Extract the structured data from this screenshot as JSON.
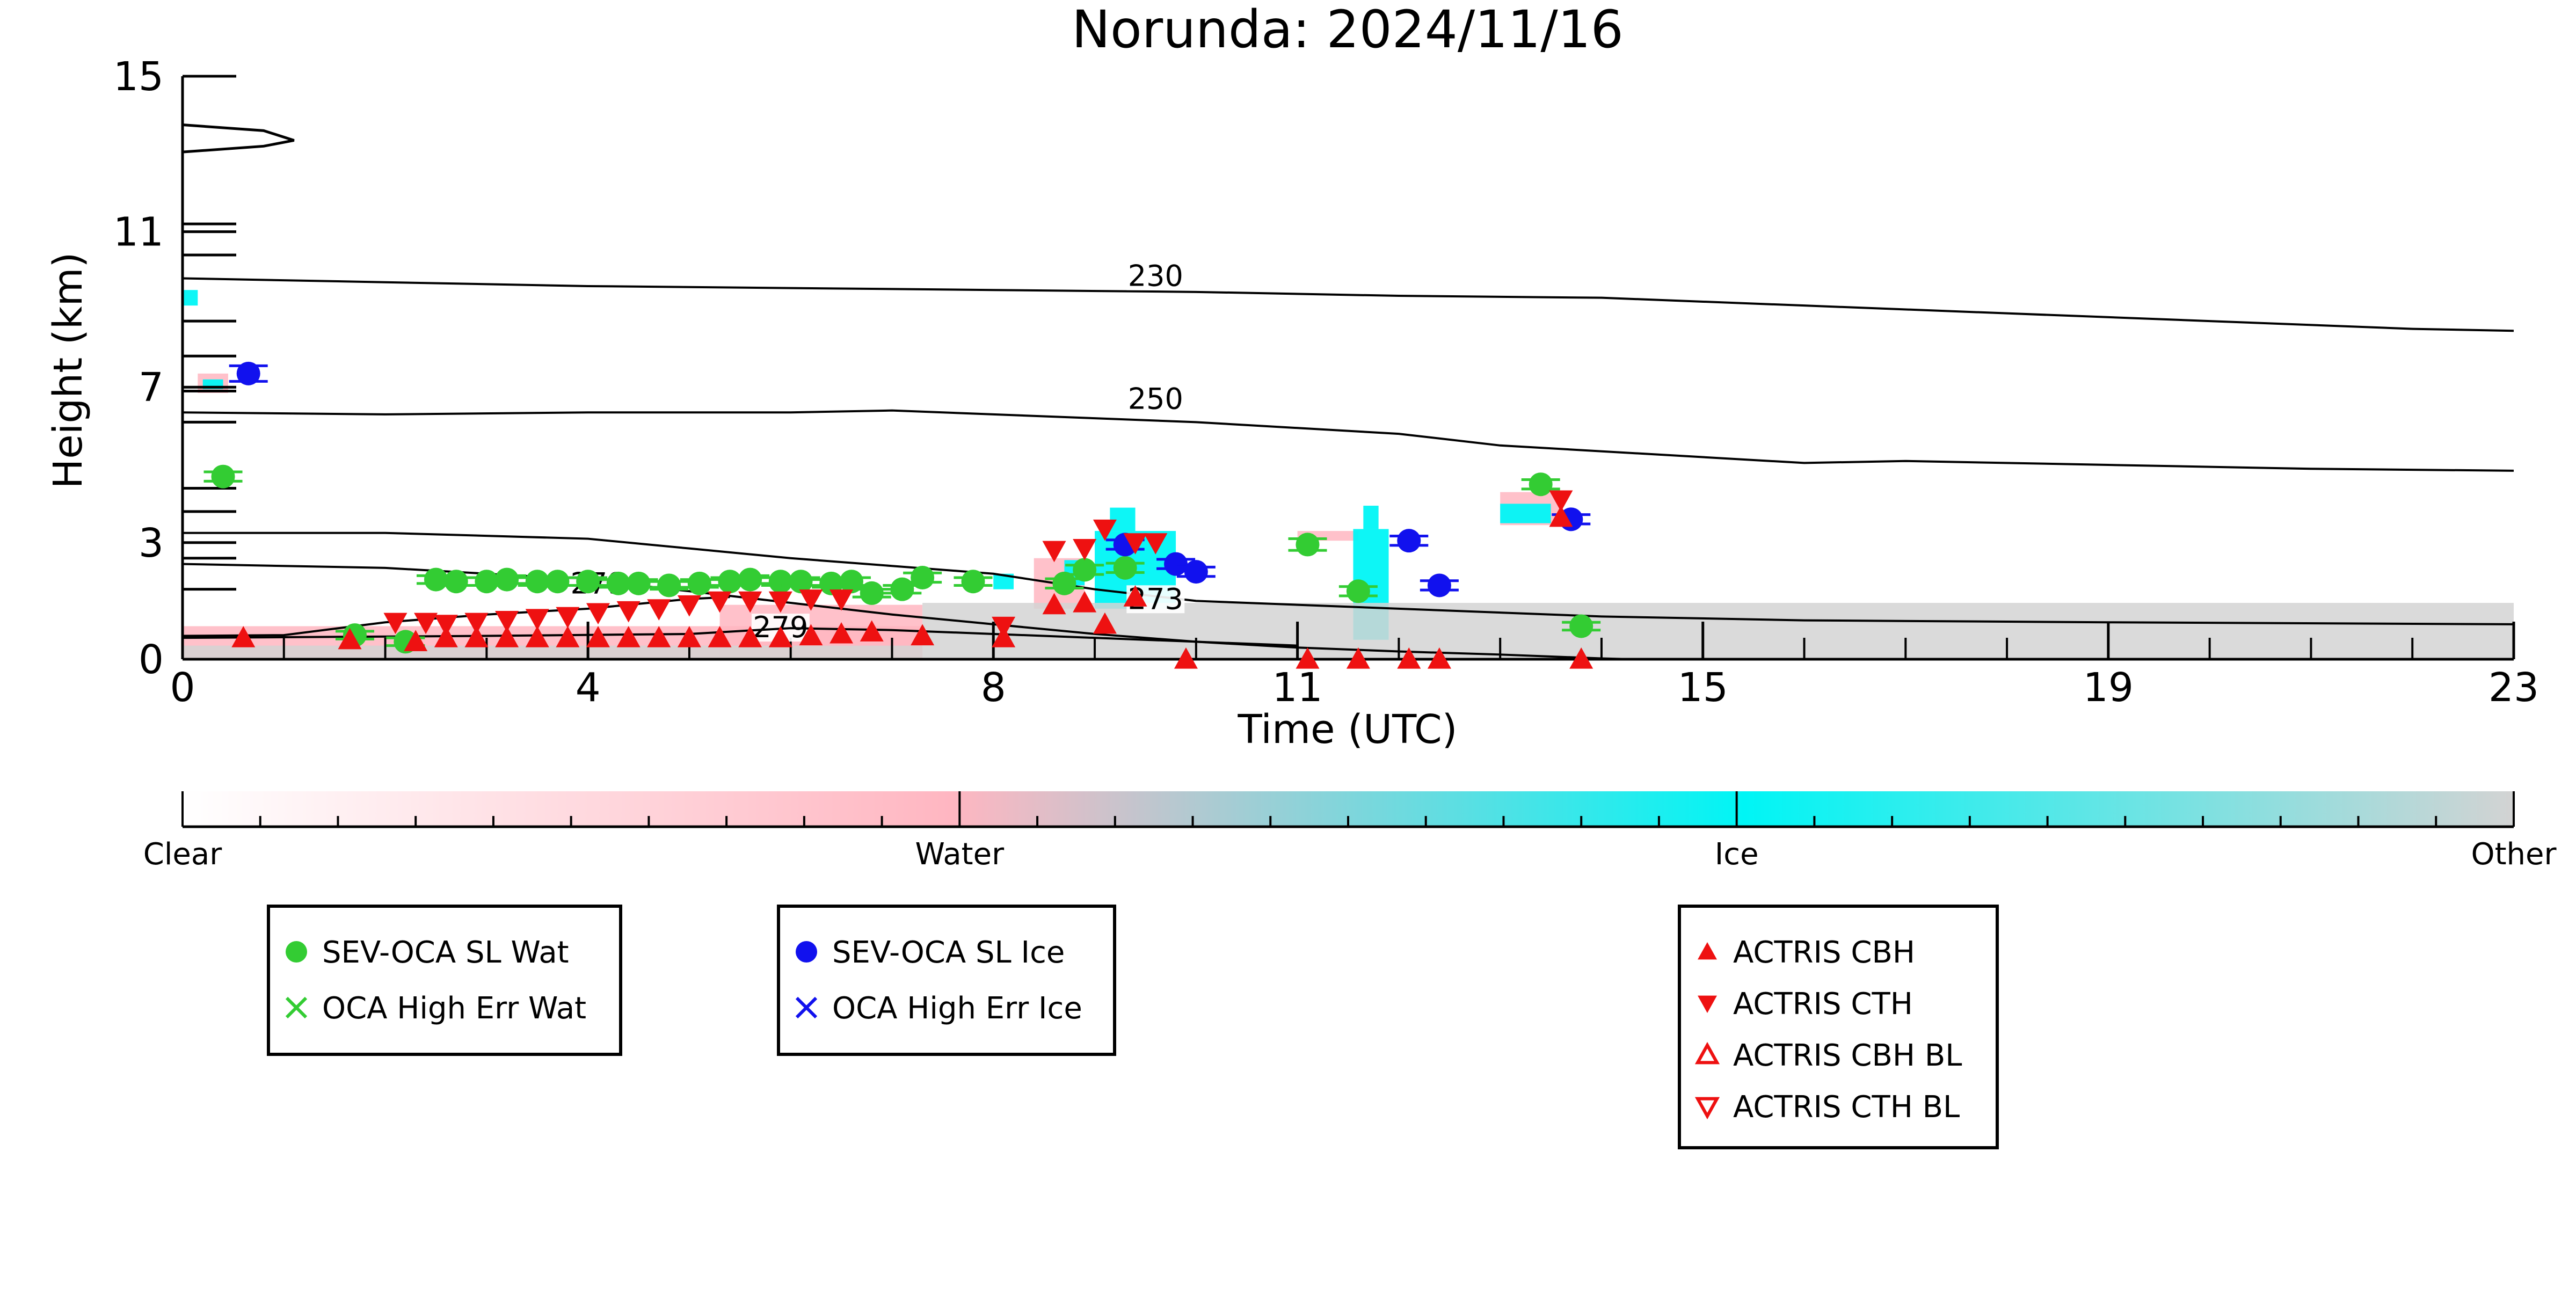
{
  "chart_data": {
    "type": "scatter",
    "title": "Norunda: 2024/11/16",
    "xlabel": "Time (UTC)",
    "ylabel": "Height (km)",
    "xlim": [
      0,
      23
    ],
    "ylim": [
      0,
      15
    ],
    "x_ticks": [
      0,
      4,
      8,
      11,
      15,
      19,
      23
    ],
    "y_ticks": [
      0,
      3,
      7,
      11,
      15
    ],
    "grid": false,
    "isotherms": [
      {
        "label": "230",
        "label_at": [
          9.6,
          9.66
        ],
        "points": [
          [
            0.0,
            9.8
          ],
          [
            2,
            9.7
          ],
          [
            4,
            9.6
          ],
          [
            6,
            9.55
          ],
          [
            8,
            9.5
          ],
          [
            10,
            9.45
          ],
          [
            12,
            9.35
          ],
          [
            14,
            9.3
          ],
          [
            16,
            9.1
          ],
          [
            18,
            8.9
          ],
          [
            20,
            8.7
          ],
          [
            22,
            8.5
          ],
          [
            23,
            8.45
          ]
        ]
      },
      {
        "label": "250",
        "label_at": [
          9.6,
          6.5
        ],
        "points": [
          [
            0.0,
            6.35
          ],
          [
            2,
            6.3
          ],
          [
            4,
            6.35
          ],
          [
            6,
            6.35
          ],
          [
            7,
            6.4
          ],
          [
            8,
            6.3
          ],
          [
            9,
            6.2
          ],
          [
            10,
            6.1
          ],
          [
            12,
            5.8
          ],
          [
            13,
            5.5
          ],
          [
            15,
            5.2
          ],
          [
            16,
            5.05
          ],
          [
            17,
            5.1
          ],
          [
            19,
            5.0
          ],
          [
            21,
            4.9
          ],
          [
            23,
            4.85
          ]
        ]
      },
      {
        "label": "273",
        "label_at": [
          9.6,
          1.35
        ],
        "points": [
          [
            0.0,
            3.25
          ],
          [
            2,
            3.25
          ],
          [
            4,
            3.1
          ],
          [
            5,
            2.85
          ],
          [
            6,
            2.6
          ],
          [
            7,
            2.4
          ],
          [
            8,
            2.2
          ],
          [
            9,
            1.8
          ],
          [
            10,
            1.5
          ],
          [
            12,
            1.3
          ],
          [
            14,
            1.1
          ],
          [
            16,
            1.0
          ],
          [
            19,
            0.95
          ],
          [
            23,
            0.9
          ]
        ]
      },
      {
        "label": "279",
        "label_at": [
          4.1,
          1.75
        ],
        "points": [
          [
            0.0,
            2.45
          ],
          [
            2,
            2.35
          ],
          [
            4,
            2.05
          ],
          [
            5,
            1.75
          ],
          [
            6,
            1.45
          ],
          [
            7,
            1.15
          ],
          [
            8,
            0.9
          ],
          [
            9,
            0.65
          ],
          [
            10,
            0.45
          ],
          [
            11,
            0.3
          ],
          [
            12,
            0.2
          ],
          [
            13,
            0.12
          ],
          [
            14,
            0.02
          ],
          [
            14.3,
            0.0
          ]
        ]
      },
      {
        "label": "279",
        "label_at": [
          5.9,
          0.62
        ],
        "points": [
          [
            0.0,
            0.6
          ],
          [
            1,
            0.62
          ],
          [
            2,
            0.95
          ],
          [
            3,
            1.15
          ],
          [
            4,
            1.3
          ],
          [
            5,
            1.55
          ],
          [
            5.4,
            1.6
          ]
        ]
      },
      {
        "label": "",
        "label_at": null,
        "points": [
          [
            0.0,
            0.55
          ],
          [
            3,
            0.6
          ],
          [
            5,
            0.65
          ],
          [
            6,
            0.8
          ],
          [
            7,
            0.75
          ],
          [
            8,
            0.65
          ],
          [
            9,
            0.55
          ],
          [
            10,
            0.45
          ],
          [
            11,
            0.35
          ]
        ]
      }
    ],
    "sub_ticks_top": [
      11.2,
      10.4,
      8.7,
      7.8,
      6.9,
      6.1,
      4.4,
      3.8,
      2.6,
      1.8
    ],
    "sub_ticks_top_hint": "extra unlabeled ticks on left axis",
    "tropopause_shape": [
      [
        0.0,
        13.75
      ],
      [
        0.8,
        13.6
      ],
      [
        1.1,
        13.35
      ],
      [
        0.8,
        13.2
      ],
      [
        0.0,
        13.05
      ]
    ],
    "series": [
      {
        "name": "SEV-OCA SL Wat",
        "marker": "circle",
        "color": "#33cc33",
        "points": [
          [
            0.4,
            4.7,
            0.12
          ],
          [
            1.7,
            0.62,
            0.1
          ],
          [
            2.2,
            0.45,
            0.1
          ],
          [
            2.5,
            2.05,
            0.1
          ],
          [
            2.7,
            2.0,
            0.1
          ],
          [
            3.0,
            2.0,
            0.1
          ],
          [
            3.2,
            2.05,
            0.1
          ],
          [
            3.5,
            2.0,
            0.1
          ],
          [
            3.7,
            2.0,
            0.1
          ],
          [
            4.0,
            2.0,
            0.1
          ],
          [
            4.3,
            1.95,
            0.1
          ],
          [
            4.5,
            1.95,
            0.1
          ],
          [
            4.8,
            1.9,
            0.1
          ],
          [
            5.1,
            1.95,
            0.1
          ],
          [
            5.4,
            2.0,
            0.1
          ],
          [
            5.6,
            2.05,
            0.1
          ],
          [
            5.9,
            2.0,
            0.1
          ],
          [
            6.1,
            2.0,
            0.1
          ],
          [
            6.4,
            1.95,
            0.1
          ],
          [
            6.6,
            2.0,
            0.1
          ],
          [
            6.8,
            1.7,
            0.1
          ],
          [
            7.1,
            1.8,
            0.1
          ],
          [
            7.3,
            2.1,
            0.12
          ],
          [
            7.8,
            2.0,
            0.1
          ],
          [
            8.7,
            1.95,
            0.12
          ],
          [
            8.9,
            2.3,
            0.12
          ],
          [
            9.3,
            2.35,
            0.12
          ],
          [
            11.1,
            2.95,
            0.15
          ],
          [
            11.6,
            1.75,
            0.12
          ],
          [
            13.4,
            4.5,
            0.12
          ],
          [
            13.8,
            0.85,
            0.1
          ]
        ]
      },
      {
        "name": "OCA High Err Wat",
        "marker": "x",
        "color": "#33cc33",
        "points": []
      },
      {
        "name": "SEV-OCA SL Ice",
        "marker": "circle",
        "color": "#1111ee",
        "points": [
          [
            0.65,
            7.35,
            0.2
          ],
          [
            9.3,
            2.95,
            0.12
          ],
          [
            9.8,
            2.45,
            0.12
          ],
          [
            10.0,
            2.25,
            0.12
          ],
          [
            12.1,
            3.05,
            0.12
          ],
          [
            12.4,
            1.9,
            0.12
          ],
          [
            13.7,
            3.6,
            0.12
          ]
        ]
      },
      {
        "name": "OCA High Err Ice",
        "marker": "x",
        "color": "#1111ee",
        "points": []
      },
      {
        "name": "ACTRIS CBH",
        "marker": "triangle-up",
        "color": "#ee1111",
        "points": [
          [
            0.6,
            0.55
          ],
          [
            1.65,
            0.5
          ],
          [
            2.3,
            0.45
          ],
          [
            2.6,
            0.55
          ],
          [
            2.9,
            0.55
          ],
          [
            3.2,
            0.55
          ],
          [
            3.5,
            0.55
          ],
          [
            3.8,
            0.55
          ],
          [
            4.1,
            0.55
          ],
          [
            4.4,
            0.55
          ],
          [
            4.7,
            0.55
          ],
          [
            5.0,
            0.55
          ],
          [
            5.3,
            0.55
          ],
          [
            5.6,
            0.55
          ],
          [
            5.9,
            0.55
          ],
          [
            6.2,
            0.6
          ],
          [
            6.5,
            0.65
          ],
          [
            6.8,
            0.7
          ],
          [
            7.3,
            0.6
          ],
          [
            8.1,
            0.55
          ],
          [
            8.6,
            1.4
          ],
          [
            8.9,
            1.45
          ],
          [
            9.1,
            0.9
          ],
          [
            9.4,
            1.6
          ],
          [
            9.9,
            0.0
          ],
          [
            11.1,
            0.0
          ],
          [
            11.6,
            0.0
          ],
          [
            12.1,
            0.0
          ],
          [
            12.4,
            0.0
          ],
          [
            13.6,
            3.65
          ],
          [
            13.8,
            0.0
          ]
        ]
      },
      {
        "name": "ACTRIS CTH",
        "marker": "triangle-down",
        "color": "#ee1111",
        "points": [
          [
            2.1,
            0.95
          ],
          [
            2.4,
            0.95
          ],
          [
            2.6,
            0.9
          ],
          [
            2.9,
            0.95
          ],
          [
            3.2,
            1.0
          ],
          [
            3.5,
            1.05
          ],
          [
            3.8,
            1.1
          ],
          [
            4.1,
            1.2
          ],
          [
            4.4,
            1.25
          ],
          [
            4.7,
            1.3
          ],
          [
            5.0,
            1.4
          ],
          [
            5.3,
            1.5
          ],
          [
            5.6,
            1.5
          ],
          [
            5.9,
            1.5
          ],
          [
            6.2,
            1.55
          ],
          [
            6.5,
            1.55
          ],
          [
            8.1,
            0.85
          ],
          [
            8.6,
            2.8
          ],
          [
            8.9,
            2.85
          ],
          [
            9.1,
            3.35
          ],
          [
            9.4,
            3.0
          ],
          [
            9.6,
            3.0
          ],
          [
            13.6,
            4.1
          ]
        ]
      },
      {
        "name": "ACTRIS CBH BL",
        "marker": "triangle-up-open",
        "color": "#ee1111",
        "points": []
      },
      {
        "name": "ACTRIS CTH BL",
        "marker": "triangle-down-open",
        "color": "#ee1111",
        "points": []
      }
    ],
    "cloud_patches": [
      {
        "kind": "water",
        "x0": 0.0,
        "x1": 7.3,
        "y0": 0.0,
        "y1": 0.85
      },
      {
        "kind": "water",
        "x0": 5.3,
        "x1": 7.3,
        "y0": 0.0,
        "y1": 1.4
      },
      {
        "kind": "water",
        "x0": 0.15,
        "x1": 0.45,
        "y0": 6.85,
        "y1": 7.35
      },
      {
        "kind": "water",
        "x0": 11.0,
        "x1": 11.6,
        "y0": 3.05,
        "y1": 3.3
      },
      {
        "kind": "water",
        "x0": 13.0,
        "x1": 13.6,
        "y0": 3.45,
        "y1": 4.3
      },
      {
        "kind": "water",
        "x0": 8.4,
        "x1": 8.9,
        "y0": 1.3,
        "y1": 2.6
      },
      {
        "kind": "ice",
        "x0": 8.0,
        "x1": 8.2,
        "y0": 1.8,
        "y1": 2.2
      },
      {
        "kind": "ice",
        "x0": 8.7,
        "x1": 8.9,
        "y0": 1.9,
        "y1": 2.55
      },
      {
        "kind": "ice",
        "x0": 9.0,
        "x1": 9.8,
        "y0": 1.3,
        "y1": 3.3
      },
      {
        "kind": "ice",
        "x0": 9.15,
        "x1": 9.4,
        "y0": 3.3,
        "y1": 3.9
      },
      {
        "kind": "ice",
        "x0": 11.55,
        "x1": 11.9,
        "y0": 0.5,
        "y1": 3.35
      },
      {
        "kind": "ice",
        "x0": 11.65,
        "x1": 11.8,
        "y0": 3.35,
        "y1": 3.95
      },
      {
        "kind": "ice",
        "x0": 0.0,
        "x1": 0.15,
        "y0": 9.1,
        "y1": 9.5
      },
      {
        "kind": "ice",
        "x0": 0.2,
        "x1": 0.4,
        "y0": 6.95,
        "y1": 7.2
      },
      {
        "kind": "ice",
        "x0": 13.0,
        "x1": 13.5,
        "y0": 3.5,
        "y1": 4.0
      },
      {
        "kind": "other",
        "x0": 7.3,
        "x1": 23.0,
        "y0": 0.0,
        "y1": 1.45
      },
      {
        "kind": "other",
        "x0": 0.0,
        "x1": 7.3,
        "y0": 0.0,
        "y1": 0.35
      }
    ],
    "colorbar": {
      "labels": [
        "Clear",
        "Water",
        "Ice",
        "Other"
      ],
      "stops": [
        "#ffffff",
        "#ffb6c1",
        "#00ffff",
        "#d3d3d3"
      ]
    },
    "legend_groups": [
      [
        "SEV-OCA SL Wat",
        "OCA High Err Wat"
      ],
      [
        "SEV-OCA SL Ice",
        "OCA High Err Ice"
      ],
      [
        "ACTRIS CBH",
        "ACTRIS CTH",
        "ACTRIS CBH BL",
        "ACTRIS CTH BL"
      ]
    ],
    "legend_placement": "below"
  },
  "colors": {
    "water": "#ffb6c1",
    "ice": "#00f5f5",
    "other": "#d3d3d3",
    "sev_wat": "#33cc33",
    "sev_ice": "#1111ee",
    "actris": "#ee1111"
  }
}
